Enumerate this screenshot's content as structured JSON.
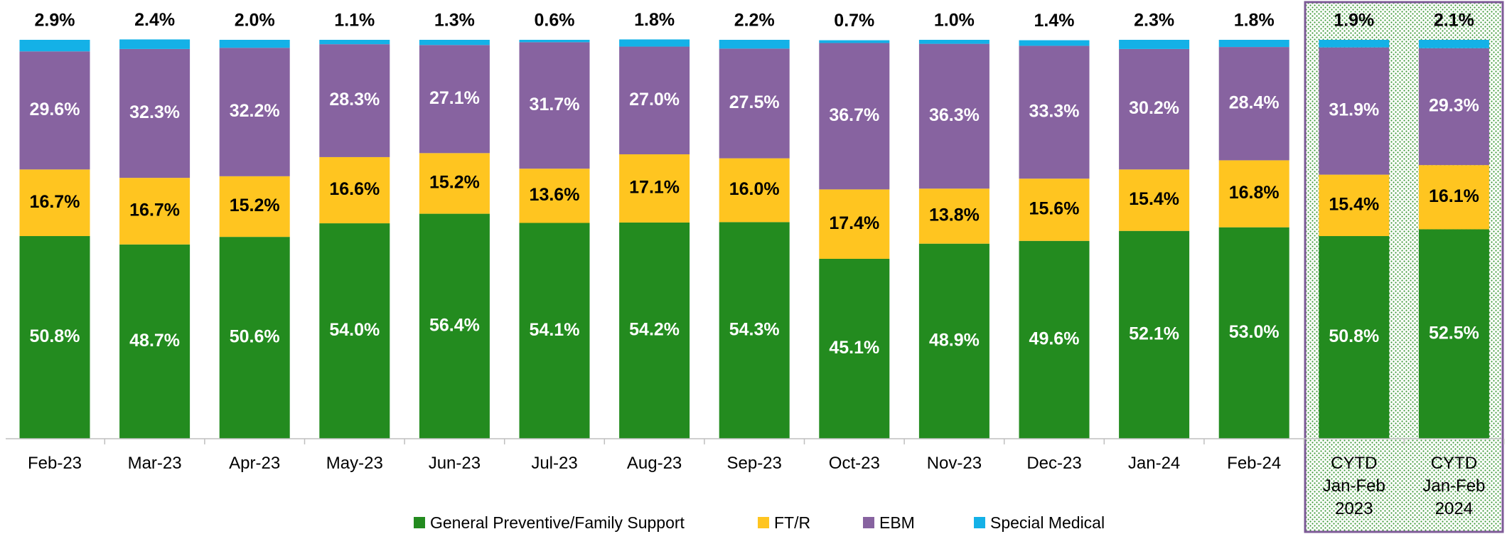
{
  "chart_data": {
    "type": "stacked-bar",
    "categories": [
      "Feb-23",
      "Mar-23",
      "Apr-23",
      "May-23",
      "Jun-23",
      "Jul-23",
      "Aug-23",
      "Sep-23",
      "Oct-23",
      "Nov-23",
      "Dec-23",
      "Jan-24",
      "Feb-24",
      "CYTD\nJan-Feb\n2023",
      "CYTD\nJan-Feb\n2024"
    ],
    "ylim": [
      0,
      100
    ],
    "series": [
      {
        "name": "General Preventive/Family Support",
        "color": "#238b1f",
        "values": [
          50.8,
          48.7,
          50.6,
          54.0,
          56.4,
          54.1,
          54.2,
          54.3,
          45.1,
          48.9,
          49.6,
          52.1,
          53.0,
          50.8,
          52.5
        ],
        "value_labels": [
          "50.8%",
          "48.7%",
          "50.6%",
          "54.0%",
          "56.4%",
          "54.1%",
          "54.2%",
          "54.3%",
          "45.1%",
          "48.9%",
          "49.6%",
          "52.1%",
          "53.0%",
          "50.8%",
          "52.5%"
        ]
      },
      {
        "name": "FT/R",
        "color": "#ffc520",
        "values": [
          16.7,
          16.7,
          15.2,
          16.6,
          15.2,
          13.6,
          17.1,
          16.0,
          17.4,
          13.8,
          15.6,
          15.4,
          16.8,
          15.4,
          16.1
        ],
        "value_labels": [
          "16.7%",
          "16.7%",
          "15.2%",
          "16.6%",
          "15.2%",
          "13.6%",
          "17.1%",
          "16.0%",
          "17.4%",
          "13.8%",
          "15.6%",
          "15.4%",
          "16.8%",
          "15.4%",
          "16.1%"
        ]
      },
      {
        "name": "EBM",
        "color": "#8763a0",
        "values": [
          29.6,
          32.3,
          32.2,
          28.3,
          27.1,
          31.7,
          27.0,
          27.5,
          36.7,
          36.3,
          33.3,
          30.2,
          28.4,
          31.9,
          29.3
        ],
        "value_labels": [
          "29.6%",
          "32.3%",
          "32.2%",
          "28.3%",
          "27.1%",
          "31.7%",
          "27.0%",
          "27.5%",
          "36.7%",
          "36.3%",
          "33.3%",
          "30.2%",
          "28.4%",
          "31.9%",
          "29.3%"
        ]
      },
      {
        "name": "Special Medical",
        "color": "#14b1e7",
        "values": [
          2.9,
          2.4,
          2.0,
          1.1,
          1.3,
          0.6,
          1.8,
          2.2,
          0.7,
          1.0,
          1.4,
          2.3,
          1.8,
          1.9,
          2.1
        ],
        "value_labels": [
          "2.9%",
          "2.4%",
          "2.0%",
          "1.1%",
          "1.3%",
          "0.6%",
          "1.8%",
          "2.2%",
          "0.7%",
          "1.0%",
          "1.4%",
          "2.3%",
          "1.8%",
          "1.9%",
          "2.1%"
        ]
      }
    ]
  }
}
